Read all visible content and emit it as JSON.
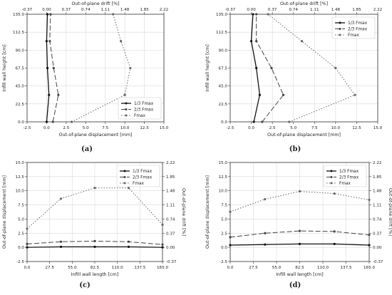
{
  "chart_data": [
    {
      "label": "(a)",
      "type": "line",
      "orientation": "vertical",
      "xlabel": "Out-of-plane displacement [mm]",
      "ylabel": "Infill wall height [cm]",
      "x2label": "Out-of-plane drift [%]",
      "xlim": [
        -2.5,
        15.0
      ],
      "ylim": [
        0,
        135
      ],
      "x2lim": [
        -0.37,
        2.22
      ],
      "xticks": [
        "-2.5",
        "0.0",
        "2.5",
        "5.0",
        "7.5",
        "10.0",
        "12.5",
        "15.0"
      ],
      "yticks": [
        "0.0",
        "22.5",
        "45.0",
        "67.5",
        "90.0",
        "112.5",
        "135.0"
      ],
      "x2ticks": [
        "-0.37",
        "0.00",
        "0.37",
        "0.74",
        "1.11",
        "1.48",
        "1.85",
        "2.22"
      ],
      "grid": true,
      "legend": "bottom-right",
      "series": [
        {
          "name": "1/3 Fmax",
          "style": "solid",
          "marker": "circle",
          "points": [
            [
              0.0,
              0
            ],
            [
              0.3,
              33.75
            ],
            [
              0.1,
              67.5
            ],
            [
              0.0,
              101.25
            ],
            [
              0.1,
              135
            ]
          ]
        },
        {
          "name": "2/3 Fmax",
          "style": "dashed",
          "marker": "circle",
          "points": [
            [
              0.8,
              0
            ],
            [
              1.5,
              33.75
            ],
            [
              0.9,
              67.5
            ],
            [
              0.4,
              101.25
            ],
            [
              0.5,
              135
            ]
          ]
        },
        {
          "name": "Fmax",
          "style": "dotted",
          "marker": "circle",
          "points": [
            [
              3.2,
              0
            ],
            [
              10.0,
              33.75
            ],
            [
              10.7,
              67.5
            ],
            [
              9.5,
              101.25
            ],
            [
              8.5,
              135
            ]
          ]
        }
      ]
    },
    {
      "label": "(b)",
      "type": "line",
      "orientation": "vertical",
      "xlabel": "Out-of-plane displacement [mm]",
      "ylabel": "Infill wall height [cm]",
      "x2label": "Out-of-plane drift [%]",
      "xlim": [
        -2.5,
        15.0
      ],
      "ylim": [
        0,
        135
      ],
      "x2lim": [
        -0.37,
        2.22
      ],
      "xticks": [
        "-2.5",
        "0.0",
        "2.5",
        "5.0",
        "7.5",
        "10.0",
        "12.5",
        "15.0"
      ],
      "yticks": [
        "0.0",
        "22.5",
        "45.0",
        "67.5",
        "90.0",
        "112.5",
        "135.0"
      ],
      "x2ticks": [
        "-0.37",
        "0.00",
        "0.37",
        "0.74",
        "1.11",
        "1.48",
        "1.85",
        "2.22"
      ],
      "grid": true,
      "legend": "top-right",
      "series": [
        {
          "name": "1/3 Fmax",
          "style": "solid",
          "marker": "circle",
          "points": [
            [
              0.3,
              0
            ],
            [
              1.0,
              33.75
            ],
            [
              0.6,
              67.5
            ],
            [
              0.0,
              101.25
            ],
            [
              0.2,
              135
            ]
          ]
        },
        {
          "name": "2/3 Fmax",
          "style": "dashed",
          "marker": "circle",
          "points": [
            [
              1.3,
              0
            ],
            [
              3.8,
              33.75
            ],
            [
              2.4,
              67.5
            ],
            [
              0.6,
              101.25
            ],
            [
              0.6,
              135
            ]
          ]
        },
        {
          "name": "Fmax",
          "style": "dotted",
          "marker": "circle",
          "points": [
            [
              4.5,
              0
            ],
            [
              12.3,
              33.75
            ],
            [
              10.0,
              67.5
            ],
            [
              6.0,
              101.25
            ],
            [
              2.0,
              135
            ]
          ]
        }
      ]
    },
    {
      "label": "(c)",
      "type": "line",
      "orientation": "horizontal",
      "xlabel": "Infill wall length [cm]",
      "ylabel": "Out-of-plane displacement [mm]",
      "y2label": "Out-of-plane drift [%]",
      "xlim": [
        0,
        165
      ],
      "ylim": [
        -2.5,
        15.0
      ],
      "y2lim": [
        -0.37,
        2.22
      ],
      "xticks": [
        "0.0",
        "27.5",
        "55.0",
        "82.5",
        "110.0",
        "137.5",
        "165.0"
      ],
      "yticks": [
        "-2.5",
        "0.0",
        "2.5",
        "5.0",
        "7.5",
        "10.0",
        "12.5",
        "15.0"
      ],
      "y2ticks": [
        "-0.37",
        "0.00",
        "0.37",
        "0.74",
        "1.11",
        "1.48",
        "1.85",
        "2.22"
      ],
      "grid": true,
      "legend": "top-right",
      "series": [
        {
          "name": "1/3 Fmax",
          "style": "solid",
          "marker": "circle",
          "points": [
            [
              0,
              0.0
            ],
            [
              41.25,
              0.1
            ],
            [
              82.5,
              0.1
            ],
            [
              123.75,
              0.1
            ],
            [
              165,
              0.0
            ]
          ]
        },
        {
          "name": "2/3 Fmax",
          "style": "dashed",
          "marker": "circle",
          "points": [
            [
              0,
              0.6
            ],
            [
              41.25,
              1.0
            ],
            [
              82.5,
              1.1
            ],
            [
              123.75,
              1.0
            ],
            [
              165,
              0.5
            ]
          ]
        },
        {
          "name": "Fmax",
          "style": "dotted",
          "marker": "circle",
          "points": [
            [
              0,
              3.3
            ],
            [
              41.25,
              8.6
            ],
            [
              82.5,
              10.5
            ],
            [
              123.75,
              10.5
            ],
            [
              165,
              4.0
            ]
          ]
        }
      ]
    },
    {
      "label": "(d)",
      "type": "line",
      "orientation": "horizontal",
      "xlabel": "Infill wall length [cm]",
      "ylabel": "Out-of-plane displacement [mm]",
      "y2label": "Out-of-plane drift [%]",
      "xlim": [
        0,
        165
      ],
      "ylim": [
        -2.5,
        15.0
      ],
      "y2lim": [
        -0.37,
        2.22
      ],
      "xticks": [
        "0.0",
        "27.5",
        "55.0",
        "82.5",
        "110.0",
        "137.5",
        "165.0"
      ],
      "yticks": [
        "-2.5",
        "0.0",
        "2.5",
        "5.0",
        "7.5",
        "10.0",
        "12.5",
        "15.0"
      ],
      "y2ticks": [
        "-0.37",
        "0.00",
        "0.37",
        "0.74",
        "1.11",
        "1.48",
        "1.85",
        "2.22"
      ],
      "grid": true,
      "legend": "top-right",
      "series": [
        {
          "name": "1/3 Fmax",
          "style": "solid",
          "marker": "circle",
          "points": [
            [
              0,
              0.4
            ],
            [
              41.25,
              0.5
            ],
            [
              82.5,
              0.6
            ],
            [
              123.75,
              0.6
            ],
            [
              165,
              0.4
            ]
          ]
        },
        {
          "name": "2/3 Fmax",
          "style": "dashed",
          "marker": "circle",
          "points": [
            [
              0,
              1.8
            ],
            [
              41.25,
              2.5
            ],
            [
              82.5,
              2.9
            ],
            [
              123.75,
              2.8
            ],
            [
              165,
              2.2
            ]
          ]
        },
        {
          "name": "Fmax",
          "style": "dotted",
          "marker": "circle",
          "points": [
            [
              0,
              6.3
            ],
            [
              41.25,
              8.5
            ],
            [
              82.5,
              9.9
            ],
            [
              123.75,
              9.5
            ],
            [
              165,
              8.4
            ]
          ]
        }
      ]
    }
  ]
}
